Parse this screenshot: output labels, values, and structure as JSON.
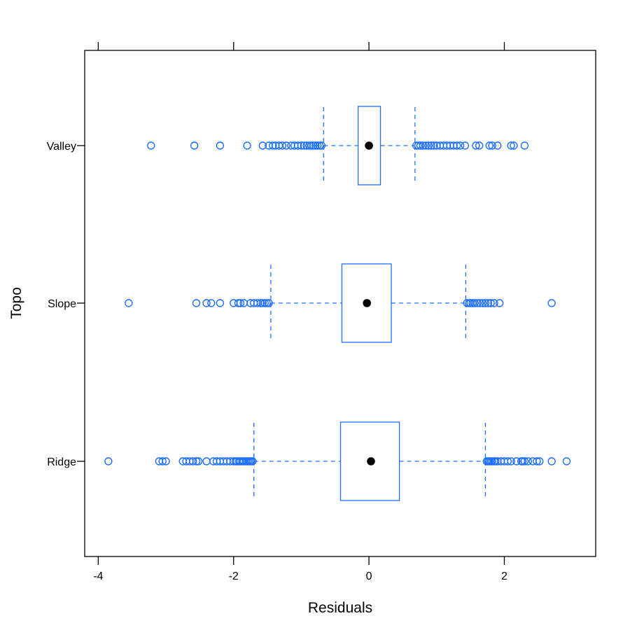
{
  "chart_data": {
    "type": "boxplot",
    "orientation": "horizontal",
    "title": "",
    "xlabel": "Residuals",
    "ylabel": "Topo",
    "xlim": [
      -4.2,
      3.35
    ],
    "x_ticks": [
      -4,
      -2,
      0,
      2
    ],
    "x_tick_labels": [
      "-4",
      "-2",
      "0",
      "2"
    ],
    "categories": [
      "Ridge",
      "Slope",
      "Valley"
    ],
    "grid": false,
    "legend": "none",
    "colors": {
      "box": "#1e6fff",
      "median": "#000000",
      "frame": "#000000"
    },
    "series": [
      {
        "category": "Ridge",
        "q1": -0.42,
        "median": 0.03,
        "q3": 0.45,
        "whisker_low": -1.7,
        "whisker_high": 1.72,
        "outliers": [
          -3.85,
          -3.1,
          -3.05,
          -3.0,
          -2.75,
          -2.7,
          -2.65,
          -2.6,
          -2.55,
          -2.52,
          -2.4,
          -2.3,
          -2.25,
          -2.2,
          -2.15,
          -2.1,
          -2.05,
          -2.0,
          -1.97,
          -1.95,
          -1.92,
          -1.9,
          -1.87,
          -1.85,
          -1.82,
          -1.8,
          -1.78,
          -1.76,
          -1.74,
          -1.72,
          1.74,
          1.76,
          1.78,
          1.8,
          1.82,
          1.85,
          1.87,
          1.9,
          1.95,
          2.0,
          2.05,
          2.1,
          2.18,
          2.25,
          2.27,
          2.3,
          2.35,
          2.42,
          2.48,
          2.52,
          2.7,
          2.92
        ]
      },
      {
        "category": "Slope",
        "q1": -0.4,
        "median": -0.03,
        "q3": 0.33,
        "whisker_low": -1.45,
        "whisker_high": 1.43,
        "outliers": [
          -3.55,
          -2.55,
          -2.4,
          -2.33,
          -2.2,
          -2.0,
          -1.93,
          -1.9,
          -1.85,
          -1.75,
          -1.7,
          -1.65,
          -1.6,
          -1.57,
          -1.54,
          -1.51,
          -1.48,
          1.45,
          1.48,
          1.5,
          1.53,
          1.56,
          1.6,
          1.64,
          1.68,
          1.72,
          1.76,
          1.8,
          1.85,
          1.93,
          2.7
        ]
      },
      {
        "category": "Valley",
        "q1": -0.16,
        "median": 0.0,
        "q3": 0.17,
        "whisker_low": -0.67,
        "whisker_high": 0.68,
        "outliers": [
          -3.22,
          -2.58,
          -2.2,
          -1.8,
          -1.57,
          -1.48,
          -1.42,
          -1.38,
          -1.33,
          -1.28,
          -1.22,
          -1.15,
          -1.1,
          -1.05,
          -1.0,
          -0.96,
          -0.92,
          -0.88,
          -0.85,
          -0.82,
          -0.79,
          -0.76,
          -0.73,
          -0.7,
          0.7,
          0.73,
          0.76,
          0.8,
          0.84,
          0.88,
          0.92,
          0.96,
          1.0,
          1.05,
          1.1,
          1.15,
          1.2,
          1.25,
          1.3,
          1.35,
          1.42,
          1.58,
          1.63,
          1.78,
          1.82,
          1.9,
          2.1,
          2.14,
          2.3
        ]
      }
    ]
  }
}
